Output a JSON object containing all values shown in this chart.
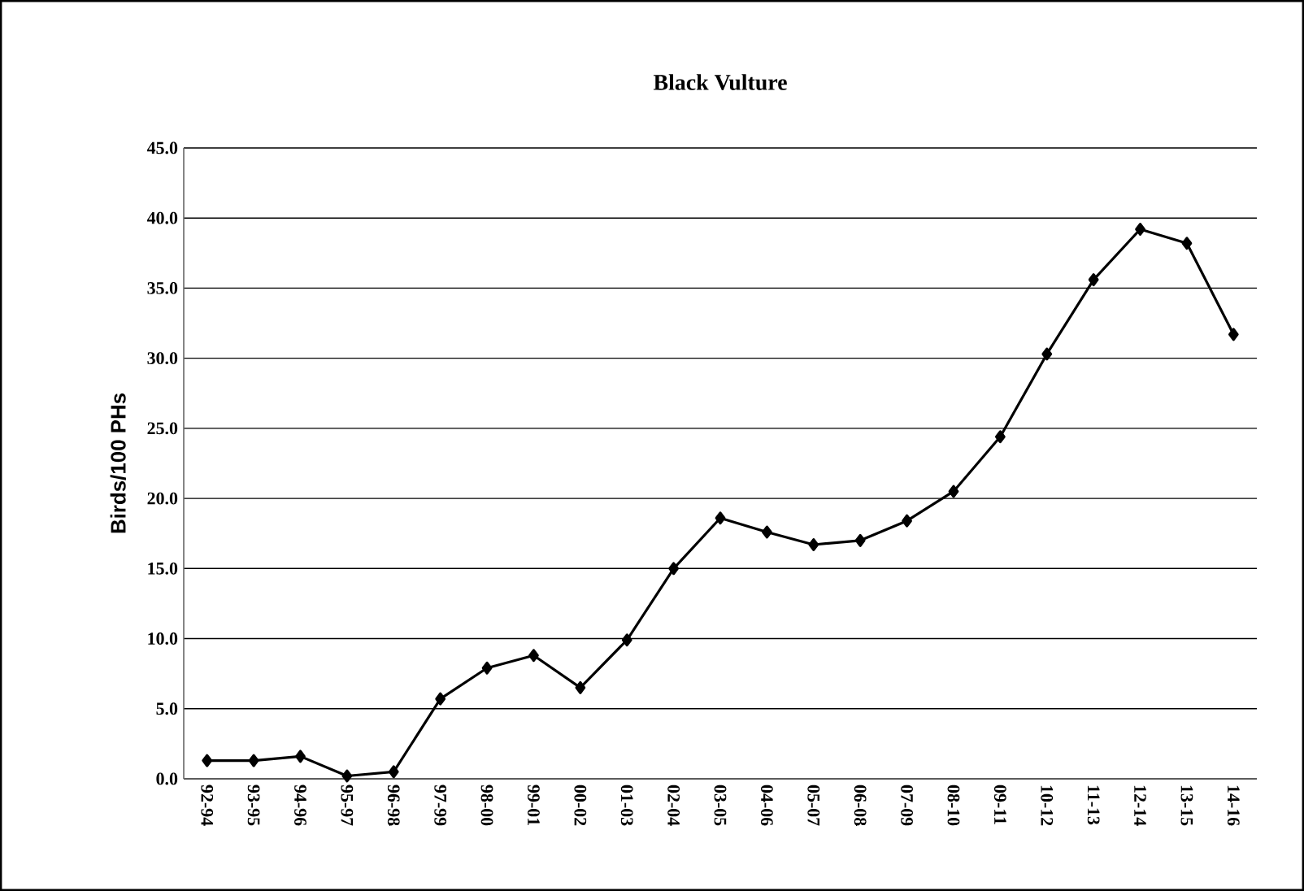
{
  "chart_data": {
    "type": "line",
    "title": "Black Vulture",
    "ylabel": "Birds/100 PHs",
    "categories": [
      "92-94",
      "93-95",
      "94-96",
      "95-97",
      "96-98",
      "97-99",
      "98-00",
      "99-01",
      "00-02",
      "01-03",
      "02-04",
      "03-05",
      "04-06",
      "05-07",
      "06-08",
      "07-09",
      "08-10",
      "09-11",
      "10-12",
      "11-13",
      "12-14",
      "13-15",
      "14-16"
    ],
    "series": [
      {
        "color": "#000000",
        "values": [
          1.3,
          1.3,
          1.6,
          0.2,
          0.5,
          5.7,
          7.9,
          8.8,
          6.5,
          9.9,
          15.0,
          18.6,
          17.6,
          16.7,
          17.0,
          18.4,
          20.5,
          24.4,
          30.3,
          35.6,
          39.2,
          38.2,
          31.7
        ]
      }
    ],
    "ylim": [
      0,
      45
    ],
    "yticks": [
      {
        "value": 0,
        "label": "0.0"
      },
      {
        "value": 5,
        "label": "5.0"
      },
      {
        "value": 10,
        "label": "10.0"
      },
      {
        "value": 15,
        "label": "15.0"
      },
      {
        "value": 20,
        "label": "20.0"
      },
      {
        "value": 25,
        "label": "25.0"
      },
      {
        "value": 30,
        "label": "30.0"
      },
      {
        "value": 35,
        "label": "35.0"
      },
      {
        "value": 40,
        "label": "40.0"
      },
      {
        "value": 45,
        "label": "45.0"
      }
    ],
    "grid": "y",
    "marker": "diamond",
    "line_style": "solid"
  }
}
